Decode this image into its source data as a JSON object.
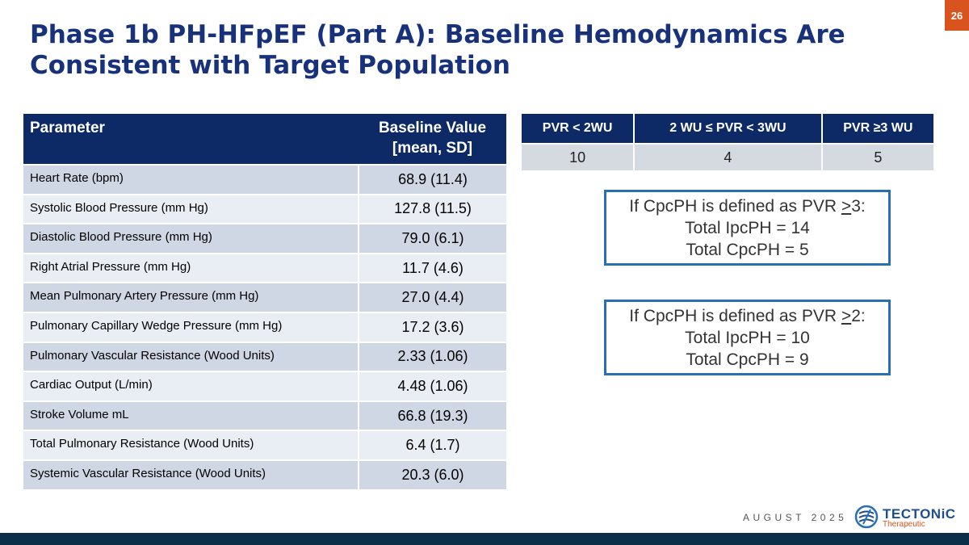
{
  "slide": {
    "number": "26",
    "title": "Phase 1b PH-HFpEF (Part A): Baseline Hemodynamics Are Consistent with Target Population"
  },
  "parameter_table": {
    "headers": [
      "Parameter",
      "Baseline Value [mean, SD]"
    ],
    "rows": [
      [
        "Heart Rate (bpm)",
        "68.9 (11.4)"
      ],
      [
        "Systolic Blood Pressure (mm Hg)",
        "127.8 (11.5)"
      ],
      [
        "Diastolic Blood Pressure (mm Hg)",
        "79.0 (6.1)"
      ],
      [
        "Right Atrial Pressure (mm Hg)",
        "11.7 (4.6)"
      ],
      [
        "Mean Pulmonary Artery Pressure (mm Hg)",
        "27.0 (4.4)"
      ],
      [
        "Pulmonary Capillary Wedge Pressure (mm Hg)",
        "17.2 (3.6)"
      ],
      [
        "Pulmonary Vascular Resistance (Wood Units)",
        "2.33 (1.06)"
      ],
      [
        "Cardiac Output (L/min)",
        "4.48 (1.06)"
      ],
      [
        "Stroke Volume mL",
        "66.8 (19.3)"
      ],
      [
        "Total Pulmonary Resistance (Wood Units)",
        "6.4 (1.7)"
      ],
      [
        "Systemic Vascular Resistance (Wood Units)",
        "20.3 (6.0)"
      ]
    ]
  },
  "pvr_table": {
    "headers": [
      "PVR < 2WU",
      "2 WU ≤ PVR < 3WU",
      "PVR ≥3 WU"
    ],
    "values": [
      "10",
      "4",
      "5"
    ]
  },
  "callouts": [
    {
      "line1_prefix": "If CpcPH is defined as PVR ",
      "line1_underlined": ">",
      "line1_suffix": "3:",
      "line2": "Total IpcPH = 14",
      "line3": "Total CpcPH = 5"
    },
    {
      "line1_prefix": "If CpcPH is defined as PVR ",
      "line1_underlined": ">",
      "line1_suffix": "2:",
      "line2": "Total IpcPH = 10",
      "line3": "Total CpcPH = 9"
    }
  ],
  "footer": {
    "date": "AUGUST 2025",
    "logo_name": "TECTONiC",
    "logo_sub": "Therapeutic"
  },
  "colors": {
    "title": "#17317a",
    "header_bg": "#0d2a66",
    "accent": "#d9531e",
    "callout_border": "#2a6fb5",
    "bottom_bar": "#0d2e47"
  },
  "icons": [
    "tectonic-logo-icon"
  ]
}
